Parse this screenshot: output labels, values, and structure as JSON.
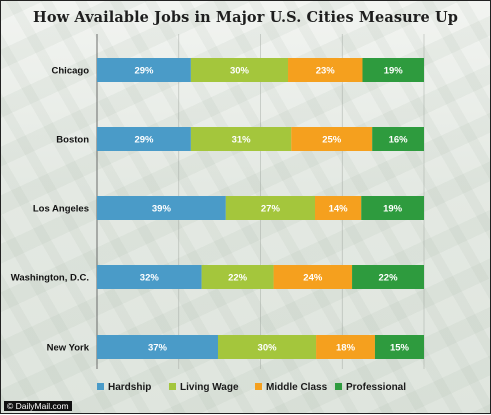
{
  "watermark": "© DailyMail.com",
  "chart_data": {
    "type": "bar",
    "orientation": "horizontal",
    "stacked": true,
    "percent_stacked": true,
    "title": "How Available Jobs in Major U.S. Cities Measure Up",
    "categories": [
      "Chicago",
      "Boston",
      "Los Angeles",
      "Washington, D.C.",
      "New York"
    ],
    "series": [
      {
        "name": "Hardship",
        "color": "#4a9bc8",
        "values": [
          29,
          29,
          39,
          32,
          37
        ]
      },
      {
        "name": "Living Wage",
        "color": "#a4c63c",
        "values": [
          30,
          31,
          27,
          22,
          30
        ]
      },
      {
        "name": "Middle Class",
        "color": "#f5a01e",
        "values": [
          23,
          25,
          14,
          24,
          18
        ]
      },
      {
        "name": "Professional",
        "color": "#2e9b3e",
        "values": [
          19,
          16,
          19,
          22,
          15
        ]
      }
    ],
    "value_suffix": "%",
    "legend_position": "bottom",
    "grid": true
  }
}
